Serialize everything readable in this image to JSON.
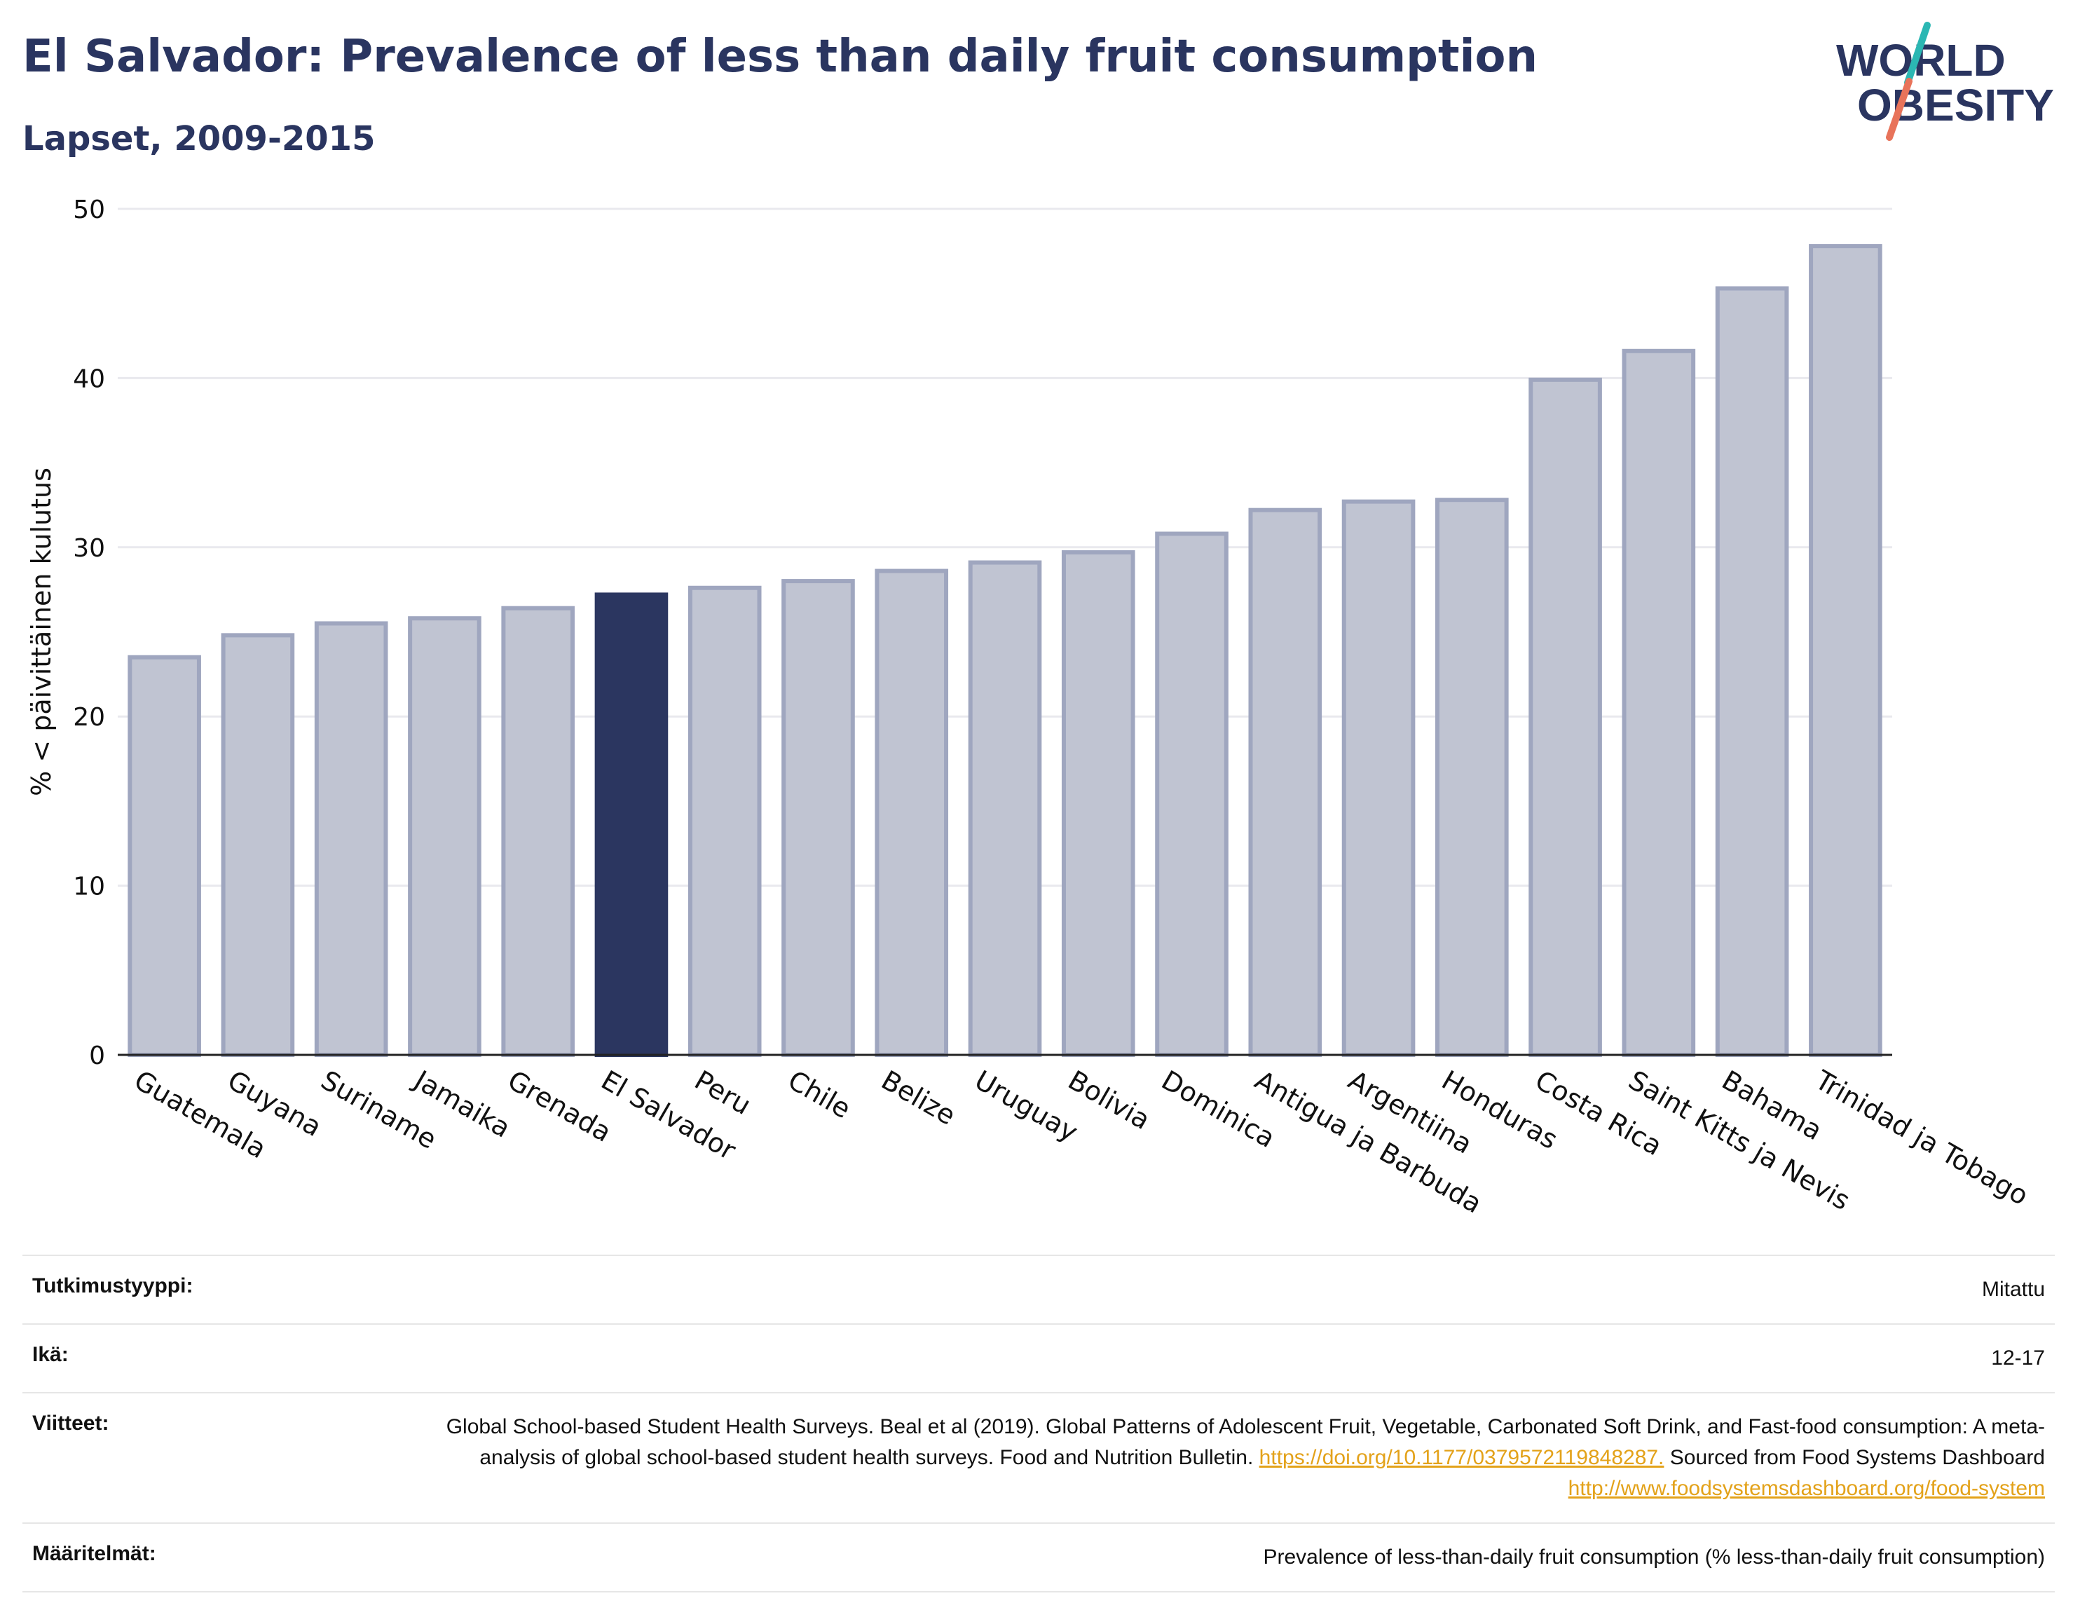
{
  "header": {
    "title": "El Salvador: Prevalence of less than daily fruit consumption",
    "subtitle": "Lapset, 2009-2015"
  },
  "logo": {
    "line1": "WORLD",
    "line2": "OBESITY",
    "accent_colors": [
      "#2bb7b3",
      "#e8735a"
    ]
  },
  "chart_data": {
    "type": "bar",
    "title": "El Salvador: Prevalence of less than daily fruit consumption",
    "subtitle": "Lapset, 2009-2015",
    "xlabel": "",
    "ylabel": "% < päivittäinen kulutus",
    "ylim": [
      0,
      50
    ],
    "yticks": [
      0,
      10,
      20,
      30,
      40,
      50
    ],
    "grid": true,
    "highlight": "El Salvador",
    "colors": {
      "bar": "#c0c4d2",
      "bar_edge": "#9fa6bf",
      "highlight": "#2b3660"
    },
    "categories": [
      "Guatemala",
      "Guyana",
      "Suriname",
      "Jamaika",
      "Grenada",
      "El Salvador",
      "Peru",
      "Chile",
      "Belize",
      "Uruguay",
      "Bolivia",
      "Dominica",
      "Antigua ja Barbuda",
      "Argentiina",
      "Honduras",
      "Costa Rica",
      "Saint Kitts ja Nevis",
      "Bahama",
      "Trinidad ja Tobago"
    ],
    "values": [
      23.5,
      24.8,
      25.5,
      25.8,
      26.4,
      27.2,
      27.6,
      28.0,
      28.6,
      29.1,
      29.7,
      30.8,
      32.2,
      32.7,
      32.8,
      39.9,
      41.6,
      45.3,
      47.8
    ]
  },
  "meta": {
    "rows": [
      {
        "label": "Tutkimustyyppi:",
        "value": "Mitattu"
      },
      {
        "label": "Ikä:",
        "value": "12-17"
      },
      {
        "label": "Viitteet:",
        "text1": "Global School-based Student Health Surveys. Beal et al (2019). Global Patterns of Adolescent Fruit, Vegetable, Carbonated Soft Drink, and Fast-food consumption: A meta-analysis of global school-based student health surveys. Food and Nutrition Bulletin.",
        "link1": "https://doi.org/10.1177/0379572119848287.",
        "text2": "Sourced from Food Systems Dashboard",
        "link2": "http://www.foodsystemsdashboard.org/food-system"
      },
      {
        "label": "Määritelmät:",
        "value": "Prevalence of less-than-daily fruit consumption (% less-than-daily fruit consumption)"
      }
    ]
  }
}
